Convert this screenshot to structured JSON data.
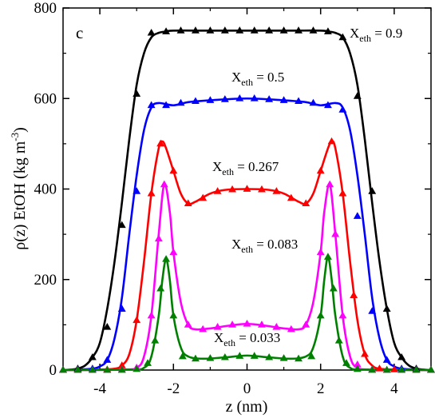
{
  "chart_data": {
    "type": "line",
    "panel_label": "c",
    "xlabel": "z  (nm)",
    "ylabel": "ρ(z)  EtOH  (kg m",
    "ylabel_sup": "-3",
    "ylabel_close": ")",
    "xlim": [
      -5,
      5
    ],
    "ylim": [
      0,
      800
    ],
    "x_ticks": [
      -4,
      -2,
      0,
      2,
      4
    ],
    "y_ticks": [
      0,
      200,
      400,
      600,
      800
    ],
    "grid": false,
    "series": [
      {
        "name": "X_eth = 0.9",
        "label_main": "X",
        "label_sub": "eth",
        "label_val": " = 0.9",
        "color": "#000000",
        "marker": "triangle",
        "line": [
          [
            -5,
            0
          ],
          [
            -4.8,
            1
          ],
          [
            -4.6,
            3
          ],
          [
            -4.4,
            10
          ],
          [
            -4.2,
            28
          ],
          [
            -4.0,
            60
          ],
          [
            -3.8,
            135
          ],
          [
            -3.6,
            240
          ],
          [
            -3.4,
            370
          ],
          [
            -3.2,
            510
          ],
          [
            -3.0,
            630
          ],
          [
            -2.8,
            700
          ],
          [
            -2.6,
            735
          ],
          [
            -2.4,
            745
          ],
          [
            -2.2,
            748
          ],
          [
            -2.0,
            750
          ],
          [
            -1.0,
            750
          ],
          [
            0,
            750
          ],
          [
            1.0,
            750
          ],
          [
            2.0,
            750
          ],
          [
            2.2,
            748
          ],
          [
            2.4,
            745
          ],
          [
            2.6,
            735
          ],
          [
            2.8,
            700
          ],
          [
            3.0,
            630
          ],
          [
            3.2,
            510
          ],
          [
            3.4,
            370
          ],
          [
            3.6,
            240
          ],
          [
            3.8,
            135
          ],
          [
            4.0,
            60
          ],
          [
            4.2,
            28
          ],
          [
            4.4,
            10
          ],
          [
            4.6,
            3
          ],
          [
            4.8,
            1
          ],
          [
            5,
            0
          ]
        ],
        "markers": [
          [
            -5,
            0
          ],
          [
            -4.6,
            3
          ],
          [
            -4.2,
            28
          ],
          [
            -3.8,
            95
          ],
          [
            -3.4,
            320
          ],
          [
            -3.0,
            610
          ],
          [
            -2.6,
            745
          ],
          [
            -2.2,
            748
          ],
          [
            -1.8,
            750
          ],
          [
            -1.4,
            750
          ],
          [
            -1.0,
            750
          ],
          [
            -0.6,
            750
          ],
          [
            -0.2,
            750
          ],
          [
            0.2,
            750
          ],
          [
            0.6,
            750
          ],
          [
            1.0,
            750
          ],
          [
            1.4,
            750
          ],
          [
            1.8,
            750
          ],
          [
            2.2,
            748
          ],
          [
            2.6,
            735
          ],
          [
            3.0,
            605
          ],
          [
            3.4,
            395
          ],
          [
            3.8,
            135
          ],
          [
            4.2,
            28
          ],
          [
            4.6,
            3
          ],
          [
            5,
            0
          ]
        ]
      },
      {
        "name": "X_eth = 0.5",
        "label_main": "X",
        "label_sub": "eth",
        "label_val": " = 0.5",
        "color": "#0000ff",
        "marker": "triangle",
        "line": [
          [
            -5,
            0
          ],
          [
            -4.6,
            1
          ],
          [
            -4.2,
            3
          ],
          [
            -4.0,
            8
          ],
          [
            -3.8,
            22
          ],
          [
            -3.6,
            70
          ],
          [
            -3.4,
            160
          ],
          [
            -3.2,
            300
          ],
          [
            -3.0,
            430
          ],
          [
            -2.8,
            530
          ],
          [
            -2.6,
            580
          ],
          [
            -2.4,
            590
          ],
          [
            -2.0,
            585
          ],
          [
            -1.6,
            592
          ],
          [
            -1.0,
            596
          ],
          [
            0,
            600
          ],
          [
            1.0,
            596
          ],
          [
            1.6,
            592
          ],
          [
            2.0,
            585
          ],
          [
            2.4,
            590
          ],
          [
            2.6,
            580
          ],
          [
            2.8,
            530
          ],
          [
            3.0,
            430
          ],
          [
            3.2,
            300
          ],
          [
            3.4,
            160
          ],
          [
            3.6,
            70
          ],
          [
            3.8,
            22
          ],
          [
            4.0,
            8
          ],
          [
            4.2,
            3
          ],
          [
            4.6,
            1
          ],
          [
            5,
            0
          ]
        ],
        "markers": [
          [
            -5,
            0
          ],
          [
            -4.6,
            1
          ],
          [
            -4.2,
            3
          ],
          [
            -3.8,
            22
          ],
          [
            -3.4,
            135
          ],
          [
            -3.0,
            395
          ],
          [
            -2.6,
            585
          ],
          [
            -2.2,
            585
          ],
          [
            -1.8,
            590
          ],
          [
            -1.4,
            594
          ],
          [
            -1.0,
            596
          ],
          [
            -0.6,
            598
          ],
          [
            -0.2,
            600
          ],
          [
            0.2,
            600
          ],
          [
            0.6,
            598
          ],
          [
            1.0,
            596
          ],
          [
            1.4,
            594
          ],
          [
            1.8,
            590
          ],
          [
            2.2,
            585
          ],
          [
            2.6,
            575
          ],
          [
            3.0,
            340
          ],
          [
            3.4,
            130
          ],
          [
            3.8,
            22
          ],
          [
            4.2,
            3
          ],
          [
            4.6,
            1
          ],
          [
            5,
            0
          ]
        ]
      },
      {
        "name": "X_eth = 0.267",
        "label_main": "X",
        "label_sub": "eth",
        "label_val": " = 0.267",
        "color": "#ff0000",
        "marker": "triangle",
        "line": [
          [
            -5,
            0
          ],
          [
            -4.0,
            1
          ],
          [
            -3.6,
            3
          ],
          [
            -3.4,
            10
          ],
          [
            -3.2,
            35
          ],
          [
            -3.0,
            110
          ],
          [
            -2.8,
            240
          ],
          [
            -2.6,
            390
          ],
          [
            -2.4,
            490
          ],
          [
            -2.3,
            505
          ],
          [
            -2.2,
            490
          ],
          [
            -2.0,
            440
          ],
          [
            -1.8,
            390
          ],
          [
            -1.6,
            368
          ],
          [
            -1.4,
            372
          ],
          [
            -1.0,
            390
          ],
          [
            -0.6,
            398
          ],
          [
            0,
            400
          ],
          [
            0.6,
            398
          ],
          [
            1.0,
            390
          ],
          [
            1.4,
            372
          ],
          [
            1.6,
            368
          ],
          [
            1.8,
            390
          ],
          [
            2.0,
            440
          ],
          [
            2.2,
            490
          ],
          [
            2.3,
            505
          ],
          [
            2.4,
            490
          ],
          [
            2.6,
            390
          ],
          [
            2.8,
            240
          ],
          [
            3.0,
            110
          ],
          [
            3.2,
            35
          ],
          [
            3.4,
            10
          ],
          [
            3.6,
            3
          ],
          [
            4.0,
            1
          ],
          [
            5,
            0
          ]
        ],
        "markers": [
          [
            -5,
            0
          ],
          [
            -4.6,
            0
          ],
          [
            -4.2,
            0
          ],
          [
            -3.8,
            1
          ],
          [
            -3.4,
            10
          ],
          [
            -3.0,
            110
          ],
          [
            -2.6,
            390
          ],
          [
            -2.35,
            500
          ],
          [
            -2.0,
            440
          ],
          [
            -1.6,
            368
          ],
          [
            -1.2,
            380
          ],
          [
            -0.8,
            395
          ],
          [
            -0.4,
            399
          ],
          [
            0,
            400
          ],
          [
            0.4,
            399
          ],
          [
            0.8,
            395
          ],
          [
            1.2,
            380
          ],
          [
            1.6,
            368
          ],
          [
            2.0,
            440
          ],
          [
            2.3,
            505
          ],
          [
            2.6,
            390
          ],
          [
            2.9,
            165
          ],
          [
            3.2,
            35
          ],
          [
            3.6,
            3
          ],
          [
            4.0,
            1
          ],
          [
            4.6,
            0
          ],
          [
            5,
            0
          ]
        ]
      },
      {
        "name": "X_eth = 0.083",
        "label_main": "X",
        "label_sub": "eth",
        "label_val": " = 0.083",
        "color": "#ff00ff",
        "marker": "triangle",
        "line": [
          [
            -5,
            0
          ],
          [
            -3.4,
            1
          ],
          [
            -3.0,
            5
          ],
          [
            -2.8,
            30
          ],
          [
            -2.6,
            120
          ],
          [
            -2.4,
            300
          ],
          [
            -2.25,
            410
          ],
          [
            -2.1,
            350
          ],
          [
            -2.0,
            260
          ],
          [
            -1.8,
            150
          ],
          [
            -1.6,
            100
          ],
          [
            -1.4,
            90
          ],
          [
            -1.0,
            92
          ],
          [
            -0.5,
            98
          ],
          [
            0,
            102
          ],
          [
            0.5,
            98
          ],
          [
            1.0,
            92
          ],
          [
            1.4,
            90
          ],
          [
            1.6,
            100
          ],
          [
            1.8,
            150
          ],
          [
            2.0,
            260
          ],
          [
            2.1,
            350
          ],
          [
            2.25,
            410
          ],
          [
            2.4,
            300
          ],
          [
            2.6,
            120
          ],
          [
            2.8,
            30
          ],
          [
            3.0,
            5
          ],
          [
            3.4,
            1
          ],
          [
            5,
            0
          ]
        ],
        "markers": [
          [
            -5,
            0
          ],
          [
            -4.6,
            0
          ],
          [
            -4.2,
            0
          ],
          [
            -3.8,
            0
          ],
          [
            -3.4,
            1
          ],
          [
            -3.0,
            5
          ],
          [
            -2.6,
            120
          ],
          [
            -2.4,
            290
          ],
          [
            -2.25,
            410
          ],
          [
            -2.0,
            260
          ],
          [
            -1.6,
            100
          ],
          [
            -1.2,
            90
          ],
          [
            -0.8,
            95
          ],
          [
            -0.4,
            100
          ],
          [
            0,
            102
          ],
          [
            0.4,
            100
          ],
          [
            0.8,
            95
          ],
          [
            1.2,
            90
          ],
          [
            1.6,
            100
          ],
          [
            2.0,
            260
          ],
          [
            2.25,
            410
          ],
          [
            2.4,
            300
          ],
          [
            2.6,
            120
          ],
          [
            3.0,
            12
          ],
          [
            3.4,
            1
          ],
          [
            3.8,
            0
          ],
          [
            4.2,
            0
          ],
          [
            4.6,
            0
          ],
          [
            5,
            0
          ]
        ]
      },
      {
        "name": "X_eth = 0.033",
        "label_main": "X",
        "label_sub": "eth",
        "label_val": " = 0.033",
        "color": "#008000",
        "marker": "triangle",
        "line": [
          [
            -5,
            0
          ],
          [
            -3.2,
            1
          ],
          [
            -2.8,
            5
          ],
          [
            -2.6,
            30
          ],
          [
            -2.4,
            120
          ],
          [
            -2.3,
            200
          ],
          [
            -2.2,
            245
          ],
          [
            -2.1,
            200
          ],
          [
            -2.0,
            120
          ],
          [
            -1.8,
            50
          ],
          [
            -1.6,
            30
          ],
          [
            -1.2,
            25
          ],
          [
            -0.6,
            28
          ],
          [
            0,
            32
          ],
          [
            0.6,
            28
          ],
          [
            1.2,
            25
          ],
          [
            1.6,
            30
          ],
          [
            1.8,
            50
          ],
          [
            2.0,
            120
          ],
          [
            2.1,
            200
          ],
          [
            2.2,
            250
          ],
          [
            2.3,
            200
          ],
          [
            2.4,
            120
          ],
          [
            2.6,
            30
          ],
          [
            2.8,
            5
          ],
          [
            3.2,
            1
          ],
          [
            5,
            0
          ]
        ],
        "markers": [
          [
            -5,
            0
          ],
          [
            -4.6,
            0
          ],
          [
            -4.2,
            0
          ],
          [
            -3.8,
            0
          ],
          [
            -3.4,
            0
          ],
          [
            -3.0,
            2
          ],
          [
            -2.7,
            15
          ],
          [
            -2.5,
            65
          ],
          [
            -2.35,
            180
          ],
          [
            -2.2,
            245
          ],
          [
            -2.0,
            120
          ],
          [
            -1.75,
            30
          ],
          [
            -1.4,
            25
          ],
          [
            -1.0,
            26
          ],
          [
            -0.6,
            28
          ],
          [
            -0.2,
            31
          ],
          [
            0.2,
            31
          ],
          [
            0.6,
            28
          ],
          [
            1.0,
            26
          ],
          [
            1.4,
            25
          ],
          [
            1.75,
            30
          ],
          [
            2.0,
            120
          ],
          [
            2.2,
            250
          ],
          [
            2.35,
            180
          ],
          [
            2.5,
            65
          ],
          [
            2.7,
            15
          ],
          [
            3.0,
            2
          ],
          [
            3.4,
            0
          ],
          [
            3.8,
            0
          ],
          [
            4.2,
            0
          ],
          [
            4.6,
            0
          ],
          [
            5,
            0
          ]
        ]
      }
    ]
  }
}
